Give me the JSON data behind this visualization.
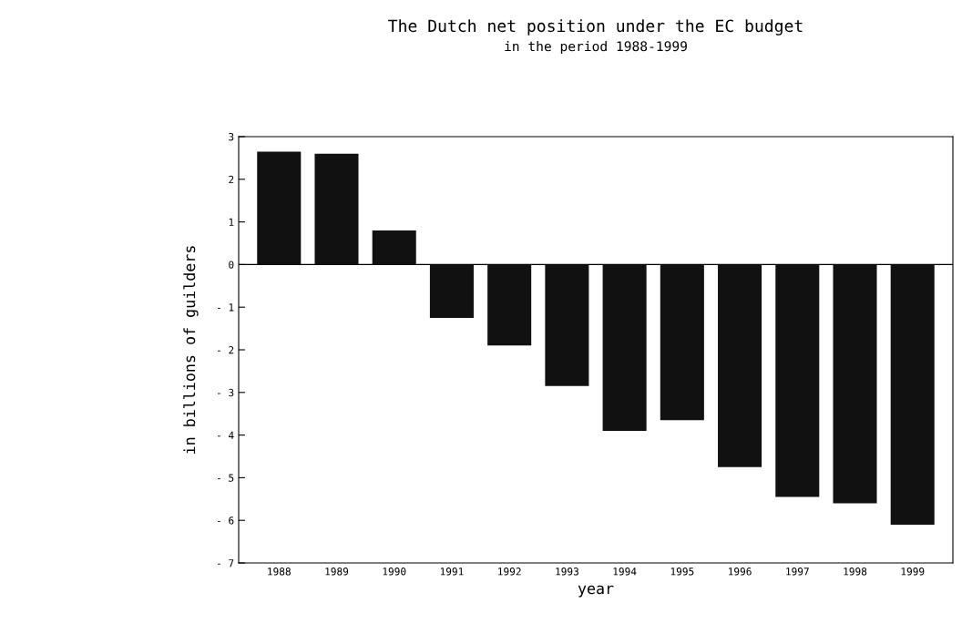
{
  "chart_data": {
    "type": "bar",
    "title": "The Dutch net position under the EC budget",
    "subtitle": "in the period 1988-1999",
    "xlabel": "year",
    "ylabel": "in billions of guilders",
    "categories": [
      "1988",
      "1989",
      "1990",
      "1991",
      "1992",
      "1993",
      "1994",
      "1995",
      "1996",
      "1997",
      "1998",
      "1999"
    ],
    "values": [
      2.65,
      2.6,
      0.8,
      -1.25,
      -1.9,
      -2.85,
      -3.9,
      -3.65,
      -4.75,
      -5.45,
      -5.6,
      -6.1
    ],
    "color": "#111111",
    "ylim": [
      -7,
      3
    ],
    "yticks": [
      {
        "value": -7,
        "label": "- 7"
      },
      {
        "value": -6,
        "label": "- 6"
      },
      {
        "value": -5,
        "label": "- 5"
      },
      {
        "value": -4,
        "label": "- 4"
      },
      {
        "value": -3,
        "label": "- 3"
      },
      {
        "value": -2,
        "label": "- 2"
      },
      {
        "value": -1,
        "label": "- 1"
      },
      0,
      1,
      2,
      3
    ],
    "ref_lines": [
      {
        "axis": "y",
        "value": 0,
        "color": "#000000"
      }
    ],
    "grid": false
  }
}
